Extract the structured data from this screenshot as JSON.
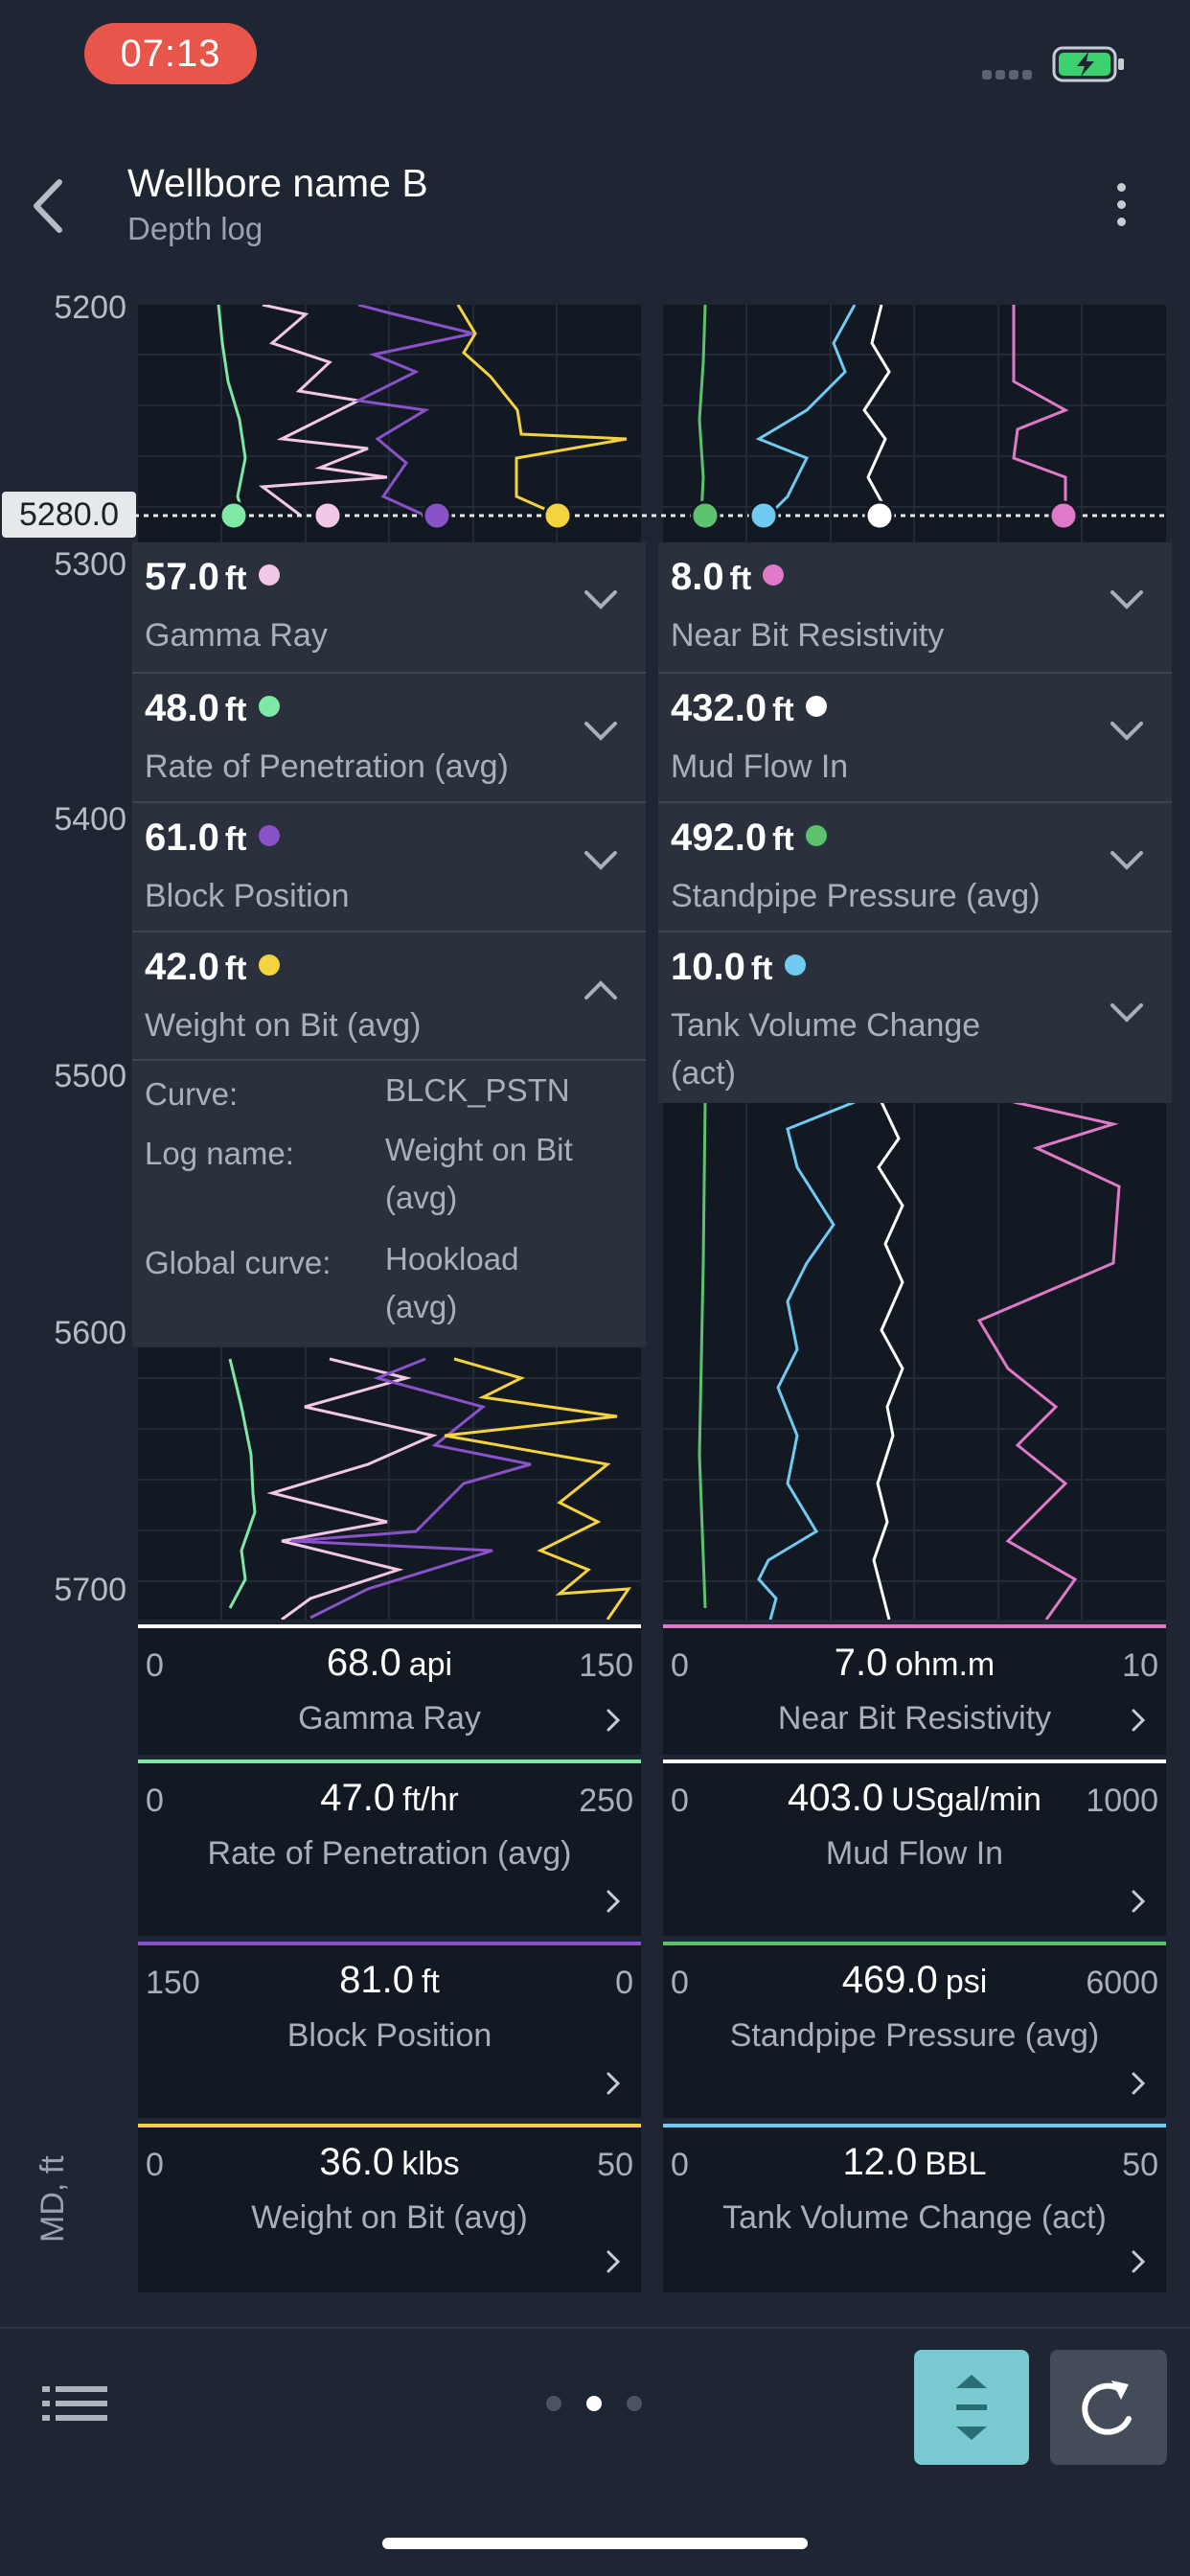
{
  "status_bar": {
    "time": "07:13"
  },
  "header": {
    "title": "Wellbore name B",
    "subtitle": "Depth log"
  },
  "depth_axis": {
    "labels": [
      "5200",
      "5300",
      "5400",
      "5500",
      "5600",
      "5700"
    ],
    "cursor_depth": "5280.0",
    "axis_title": "MD, ft"
  },
  "colors": {
    "green": "#7ee8a5",
    "pink_light": "#f3c8e6",
    "purple": "#8a52c9",
    "yellow": "#f5d33f",
    "green_dark": "#5cc26e",
    "blue": "#6fcbf2",
    "white": "#ffffff",
    "magenta": "#e07ac8"
  },
  "left_panel": {
    "rows": [
      {
        "value": "57.0",
        "unit": "ft",
        "name": "Gamma Ray",
        "color": "#f3c8e6",
        "expanded": false
      },
      {
        "value": "48.0",
        "unit": "ft",
        "name": "Rate of Penetration (avg)",
        "color": "#7ee8a5",
        "expanded": false
      },
      {
        "value": "61.0",
        "unit": "ft",
        "name": "Block Position",
        "color": "#8a52c9",
        "expanded": false
      },
      {
        "value": "42.0",
        "unit": "ft",
        "name": "Weight on Bit (avg)",
        "color": "#f5d33f",
        "expanded": true
      }
    ],
    "details": [
      {
        "label": "Curve:",
        "value": "BLCK_PSTN"
      },
      {
        "label": "Log name:",
        "value": "Weight on Bit (avg)"
      },
      {
        "label": "Global curve:",
        "value": "Hookload (avg)"
      }
    ]
  },
  "right_panel": {
    "rows": [
      {
        "value": "8.0",
        "unit": "ft",
        "name": "Near Bit Resistivity",
        "color": "#e07ac8",
        "expanded": false
      },
      {
        "value": "432.0",
        "unit": "ft",
        "name": "Mud Flow In",
        "color": "#ffffff",
        "expanded": false
      },
      {
        "value": "492.0",
        "unit": "ft",
        "name": "Standpipe Pressure (avg)",
        "color": "#5cc26e",
        "expanded": false
      },
      {
        "value": "10.0",
        "unit": "ft",
        "name": "Tank Volume Change (act)",
        "color": "#6fcbf2",
        "expanded": false
      }
    ]
  },
  "curve_cards": {
    "left": [
      {
        "min": "0",
        "max": "150",
        "value": "68.0",
        "unit": "api",
        "name": "Gamma Ray",
        "color": "#ffffff"
      },
      {
        "min": "0",
        "max": "250",
        "value": "47.0",
        "unit": "ft/hr",
        "name": "Rate of Penetration (avg)",
        "color": "#7ee8a5"
      },
      {
        "min": "150",
        "max": "0",
        "value": "81.0",
        "unit": "ft",
        "name": "Block Position",
        "color": "#8a52c9"
      },
      {
        "min": "0",
        "max": "50",
        "value": "36.0",
        "unit": "klbs",
        "name": "Weight on Bit (avg)",
        "color": "#f5d33f"
      }
    ],
    "right": [
      {
        "min": "0",
        "max": "10",
        "value": "7.0",
        "unit": "ohm.m",
        "name": "Near Bit Resistivity",
        "color": "#e07ac8"
      },
      {
        "min": "0",
        "max": "1000",
        "value": "403.0",
        "unit": "USgal/min",
        "name": "Mud Flow In",
        "color": "#ffffff"
      },
      {
        "min": "0",
        "max": "6000",
        "value": "469.0",
        "unit": "psi",
        "name": "Standpipe Pressure (avg)",
        "color": "#5cc26e"
      },
      {
        "min": "0",
        "max": "50",
        "value": "12.0",
        "unit": "BBL",
        "name": "Tank Volume Change (act)",
        "color": "#6fcbf2"
      }
    ]
  },
  "pager": {
    "count": 3,
    "active": 1
  }
}
